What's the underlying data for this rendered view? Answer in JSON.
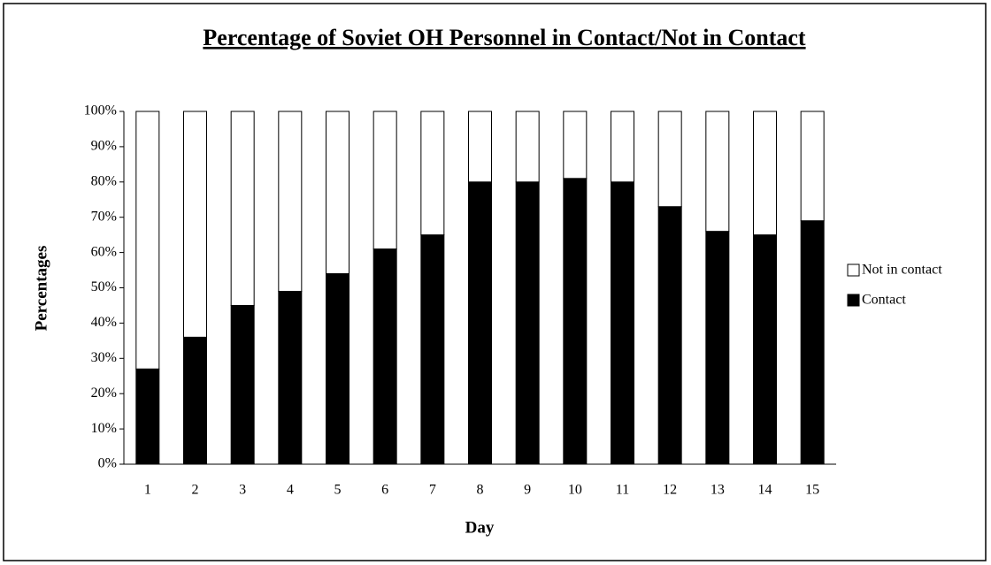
{
  "chart_data": {
    "type": "stacked_bar",
    "title": "Percentage of Soviet OH Personnel in Contact/Not in Contact",
    "x_label": "Day",
    "y_label": "Percentages",
    "categories": [
      "1",
      "2",
      "3",
      "4",
      "5",
      "6",
      "7",
      "8",
      "9",
      "10",
      "11",
      "12",
      "13",
      "14",
      "15"
    ],
    "series": [
      {
        "name": "Contact",
        "color": "#000000",
        "values": [
          27,
          36,
          45,
          49,
          54,
          61,
          65,
          80,
          80,
          81,
          80,
          73,
          66,
          65,
          69
        ]
      },
      {
        "name": "Not in contact",
        "color": "#ffffff",
        "values": [
          73,
          64,
          55,
          51,
          46,
          39,
          35,
          20,
          20,
          19,
          20,
          27,
          34,
          35,
          31
        ]
      }
    ],
    "ylim": [
      0,
      100
    ],
    "yticks": [
      {
        "value": 0,
        "label": "0%"
      },
      {
        "value": 10,
        "label": "10%"
      },
      {
        "value": 20,
        "label": "20%"
      },
      {
        "value": 30,
        "label": "30%"
      },
      {
        "value": 40,
        "label": "40%"
      },
      {
        "value": 50,
        "label": "50%"
      },
      {
        "value": 60,
        "label": "60%"
      },
      {
        "value": 70,
        "label": "70%"
      },
      {
        "value": 80,
        "label": "80%"
      },
      {
        "value": 90,
        "label": "90%"
      },
      {
        "value": 100,
        "label": "100%"
      }
    ],
    "legend": "right"
  }
}
